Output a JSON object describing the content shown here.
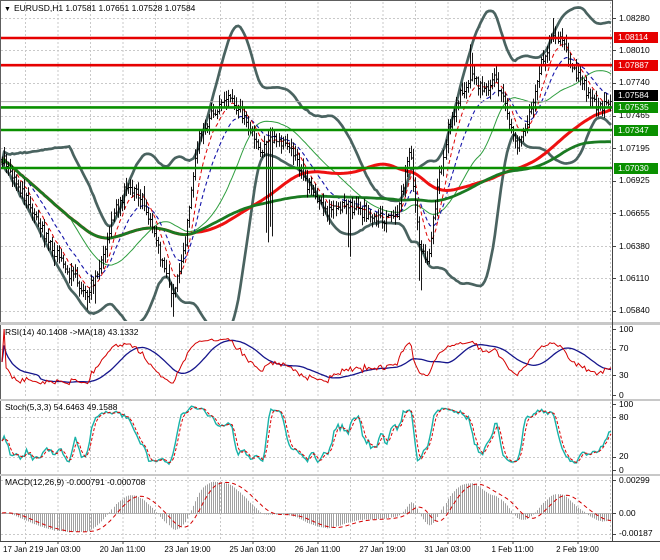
{
  "window": {
    "title": "EURUSD,H1  1.07581 1.07651 1.07528 1.07584",
    "dropdown_icon": "▼"
  },
  "colors": {
    "grid": "#c9c9c9",
    "bar": "#000000",
    "bollinger": "#4a6360",
    "ma_fast_red": "#dd0000",
    "ma_blue": "#1414aa",
    "ma_mid_green": "#2f9e3f",
    "ma_slow_red": "#ee1111",
    "ma_slow_green": "#1a7a22",
    "sr_green": "#0a9000",
    "sr_red": "#e60000",
    "bid_line": "#aeaeae",
    "rsi": "#d40000",
    "rsi_ma": "#16168c",
    "stoch_k": "#18b2a8",
    "stoch_d": "#dd0000",
    "macd_hist": "#a0a0a0",
    "macd_signal": "#d40000",
    "badge_black": "#000000",
    "pane_border": "#5e5e5e",
    "separator": "#c8c8c8",
    "axis_line": "#444444"
  },
  "chart_data": [
    {
      "pane": "main",
      "type": "candlestick",
      "symbol": "EURUSD",
      "timeframe": "H1",
      "quote": {
        "open": "1.07581",
        "high": "1.07651",
        "low": "1.07528",
        "close": "1.07584"
      },
      "bid": 1.07584,
      "bars": 300,
      "visible_price_range": [
        1.0575,
        1.0842
      ],
      "y_axis": {
        "labels": [
          {
            "text": "1.08280",
            "value": 1.0828
          },
          {
            "text": "1.08010",
            "value": 1.0801
          },
          {
            "text": "1.07740",
            "value": 1.0774
          },
          {
            "text": "1.07465",
            "value": 1.07465
          },
          {
            "text": "1.07195",
            "value": 1.07195
          },
          {
            "text": "1.06925",
            "value": 1.06925
          },
          {
            "text": "1.06655",
            "value": 1.06655
          },
          {
            "text": "1.06380",
            "value": 1.0638
          },
          {
            "text": "1.06110",
            "value": 1.0611
          },
          {
            "text": "1.05840",
            "value": 1.0584
          }
        ],
        "badges": [
          {
            "text": "1.08114",
            "value": 1.08114,
            "color": "#e60000",
            "kind": "resistance"
          },
          {
            "text": "1.07887",
            "value": 1.07887,
            "color": "#e60000",
            "kind": "resistance"
          },
          {
            "text": "1.07584",
            "value": 1.07584,
            "color": "#000000",
            "kind": "bid"
          },
          {
            "text": "1.07535",
            "value": 1.07535,
            "color": "#0a9000",
            "kind": "support"
          },
          {
            "text": "1.07347",
            "value": 1.07347,
            "color": "#0a9000",
            "kind": "support"
          },
          {
            "text": "1.07030",
            "value": 1.0703,
            "color": "#0a9000",
            "kind": "support"
          }
        ]
      },
      "sr_lines": [
        {
          "price": 1.08114,
          "color": "#e60000"
        },
        {
          "price": 1.07887,
          "color": "#e60000"
        },
        {
          "price": 1.07535,
          "color": "#0a9000"
        },
        {
          "price": 1.07347,
          "color": "#0a9000"
        },
        {
          "price": 1.0703,
          "color": "#0a9000"
        }
      ],
      "close_waypoints": [
        [
          0.0,
          1.071
        ],
        [
          0.02,
          1.0695
        ],
        [
          0.05,
          1.0668
        ],
        [
          0.08,
          1.064
        ],
        [
          0.105,
          1.0618
        ],
        [
          0.14,
          1.0598
        ],
        [
          0.16,
          1.062
        ],
        [
          0.185,
          1.0668
        ],
        [
          0.21,
          1.069
        ],
        [
          0.235,
          1.0672
        ],
        [
          0.258,
          1.0638
        ],
        [
          0.28,
          1.0596
        ],
        [
          0.298,
          1.063
        ],
        [
          0.32,
          1.0722
        ],
        [
          0.345,
          1.0748
        ],
        [
          0.375,
          1.0762
        ],
        [
          0.4,
          1.0742
        ],
        [
          0.425,
          1.0718
        ],
        [
          0.45,
          1.073
        ],
        [
          0.48,
          1.0712
        ],
        [
          0.51,
          1.0682
        ],
        [
          0.535,
          1.0668
        ],
        [
          0.56,
          1.0672
        ],
        [
          0.59,
          1.0668
        ],
        [
          0.62,
          1.066
        ],
        [
          0.65,
          1.0665
        ],
        [
          0.67,
          1.0722
        ],
        [
          0.685,
          1.064
        ],
        [
          0.7,
          1.062
        ],
        [
          0.715,
          1.068
        ],
        [
          0.73,
          1.073
        ],
        [
          0.75,
          1.0762
        ],
        [
          0.77,
          1.0778
        ],
        [
          0.79,
          1.0768
        ],
        [
          0.81,
          1.0778
        ],
        [
          0.825,
          1.0758
        ],
        [
          0.845,
          1.072
        ],
        [
          0.865,
          1.0742
        ],
        [
          0.885,
          1.0788
        ],
        [
          0.905,
          1.0815
        ],
        [
          0.92,
          1.0808
        ],
        [
          0.94,
          1.0782
        ],
        [
          0.96,
          1.0768
        ],
        [
          0.98,
          1.0752
        ],
        [
          1.0,
          1.07584
        ]
      ],
      "low_spikes": [
        {
          "f": 0.14,
          "price": 1.0585
        },
        {
          "f": 0.155,
          "price": 1.059
        },
        {
          "f": 0.28,
          "price": 1.0579
        },
        {
          "f": 0.437,
          "price": 1.0641
        },
        {
          "f": 0.445,
          "price": 1.0646
        },
        {
          "f": 0.573,
          "price": 1.0629
        },
        {
          "f": 0.69,
          "price": 1.0601
        }
      ],
      "high_spikes": [
        {
          "f": 0.77,
          "price": 1.0806
        },
        {
          "f": 0.905,
          "price": 1.0828
        }
      ],
      "overlays": [
        {
          "name": "bollinger",
          "period": 34,
          "deviation": 2
        },
        {
          "name": "ema-fast",
          "period": 8,
          "style": "dashed"
        },
        {
          "name": "ema-medium",
          "period": 17,
          "style": "dashed"
        },
        {
          "name": "sma-slow-red",
          "period": 96
        },
        {
          "name": "sma-slow-green",
          "period": 192
        }
      ]
    },
    {
      "pane": "rsi",
      "type": "line",
      "title": "RSI(14) 40.1408  ->MA(18) 43.1332",
      "indicator": "RSI",
      "period": 14,
      "ma_period": 18,
      "current": 40.1408,
      "ma_current": 43.1332,
      "y_labels": [
        100,
        70,
        30,
        0
      ],
      "dashed_levels": [
        70,
        30
      ],
      "range": [
        0,
        100
      ]
    },
    {
      "pane": "stoch",
      "type": "line",
      "title": "Stoch(5,3,3) 54.6463 49.1588",
      "indicator": "Stochastic",
      "params": [
        5,
        3,
        3
      ],
      "current_k": 54.6463,
      "current_d": 49.1588,
      "y_labels": [
        100,
        80,
        20,
        0
      ],
      "dashed_levels": [
        80,
        20
      ],
      "range": [
        0,
        100
      ]
    },
    {
      "pane": "macd",
      "type": "bar",
      "title": "MACD(12,26,9) -0.000791 -0.000708",
      "indicator": "MACD",
      "params": [
        12,
        26,
        9
      ],
      "current_macd": -0.000791,
      "current_signal": -0.000708,
      "y_labels": [
        "0.00299",
        "0.00",
        "-0.00187"
      ],
      "y_values": [
        0.00299,
        0,
        -0.00187
      ],
      "range": [
        -0.00235,
        0.0035
      ]
    }
  ],
  "time_axis": {
    "labels": [
      "17 Jan 2017",
      "19 Jan 03:00",
      "20 Jan 11:00",
      "23 Jan 19:00",
      "25 Jan 03:00",
      "26 Jan 11:00",
      "27 Jan 19:00",
      "31 Jan 03:00",
      "1 Feb 11:00",
      "2 Feb 19:00"
    ]
  }
}
